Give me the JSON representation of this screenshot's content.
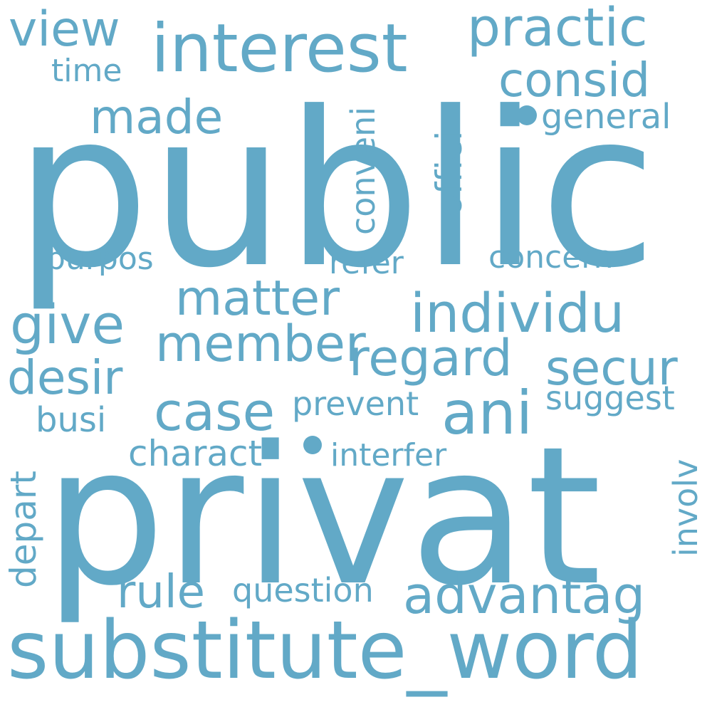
{
  "word_cloud": {
    "color": "#62A9C7",
    "background": "#ffffff",
    "words": {
      "public": "public",
      "privat": "privat",
      "substitute_word": "substitute_word",
      "interest": "interest",
      "practic": "practic",
      "view": "view",
      "consid": "consid",
      "time": "time",
      "made": "made",
      "general": "general",
      "conveni": "conveni",
      "offici": "offici",
      "purpos": "purpos",
      "refer": "refer",
      "concern": "concern",
      "matter": "matter",
      "individu": "individu",
      "give": "give",
      "member": "member",
      "regard": "regard",
      "desir": "desir",
      "secur": "secur",
      "case": "case",
      "ani": "ani",
      "prevent": "prevent",
      "suggest": "suggest",
      "busi": "busi",
      "charact": "charact",
      "interfer": "interfer",
      "depart": "depart",
      "involv": "involv",
      "rule": "rule",
      "question": "question",
      "advantag": "advantag"
    }
  }
}
